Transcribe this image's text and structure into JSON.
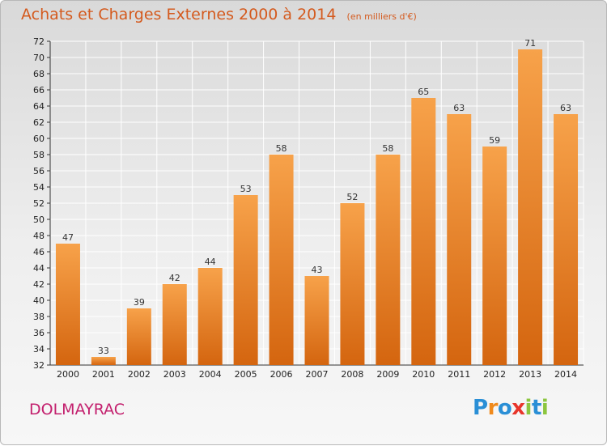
{
  "header": {
    "title": "Achats et Charges Externes 2000 à 2014",
    "unit": "(en milliers d'€)"
  },
  "footer": {
    "commune": "DOLMAYRAC",
    "brand": "Proxiti",
    "brand_letters": [
      {
        "char": "P",
        "color": "#2a8fd6"
      },
      {
        "char": "r",
        "color": "#f08a1c"
      },
      {
        "char": "o",
        "color": "#2a8fd6"
      },
      {
        "char": "x",
        "color": "#e8352b"
      },
      {
        "char": "i",
        "color": "#8cc63f"
      },
      {
        "char": "t",
        "color": "#2a8fd6"
      },
      {
        "char": "i",
        "color": "#8cc63f"
      }
    ]
  },
  "chart_data": {
    "type": "bar",
    "title": "Achats et Charges Externes 2000 à 2014",
    "subtitle": "(en milliers d'€)",
    "categories": [
      "2000",
      "2001",
      "2002",
      "2003",
      "2004",
      "2005",
      "2006",
      "2007",
      "2008",
      "2009",
      "2010",
      "2011",
      "2012",
      "2013",
      "2014"
    ],
    "values": [
      47,
      33,
      39,
      42,
      44,
      53,
      58,
      43,
      52,
      58,
      65,
      63,
      59,
      71,
      63
    ],
    "ylim": [
      32,
      72
    ],
    "yticks": [
      32,
      34,
      36,
      38,
      40,
      42,
      44,
      46,
      48,
      50,
      52,
      54,
      56,
      58,
      60,
      62,
      64,
      66,
      68,
      70,
      72
    ],
    "grid": true,
    "bar_color_top": "#f7a24a",
    "bar_color_bottom": "#d4650f",
    "data_labels": true
  }
}
